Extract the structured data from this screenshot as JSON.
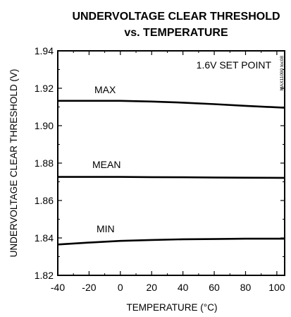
{
  "chart_data": {
    "type": "line",
    "title_line1": "UNDERVOLTAGE CLEAR THRESHOLD",
    "title_line2": "vs. TEMPERATURE",
    "xlabel": "TEMPERATURE (°C)",
    "ylabel": "UNDERVOLTAGE CLEAR THRESHOLD (V)",
    "annotation": "1.6V SET POINT",
    "figure_id": "MAX11090 toc08",
    "xlim": [
      -40,
      105
    ],
    "ylim": [
      1.82,
      1.94
    ],
    "xticks": [
      -40,
      -20,
      0,
      20,
      40,
      60,
      80,
      100
    ],
    "xtick_labels": [
      "-40",
      "-20",
      "0",
      "20",
      "40",
      "60",
      "80",
      "100"
    ],
    "yticks": [
      1.82,
      1.84,
      1.86,
      1.88,
      1.9,
      1.92,
      1.94
    ],
    "ytick_labels": [
      "1.82",
      "1.84",
      "1.86",
      "1.88",
      "1.90",
      "1.92",
      "1.94"
    ],
    "grid": false,
    "series": [
      {
        "name": "MAX",
        "x": [
          -40,
          -20,
          0,
          20,
          40,
          60,
          80,
          105
        ],
        "y": [
          1.9133,
          1.9133,
          1.9133,
          1.9129,
          1.9123,
          1.9115,
          1.9106,
          1.9096
        ]
      },
      {
        "name": "MEAN",
        "x": [
          -40,
          -20,
          0,
          20,
          40,
          60,
          80,
          105
        ],
        "y": [
          1.8726,
          1.8726,
          1.8726,
          1.8725,
          1.8724,
          1.8723,
          1.8722,
          1.8721
        ]
      },
      {
        "name": "MIN",
        "x": [
          -40,
          -20,
          0,
          20,
          40,
          60,
          80,
          105
        ],
        "y": [
          1.8365,
          1.8375,
          1.8384,
          1.8389,
          1.8393,
          1.8394,
          1.8396,
          1.8396
        ]
      }
    ]
  }
}
